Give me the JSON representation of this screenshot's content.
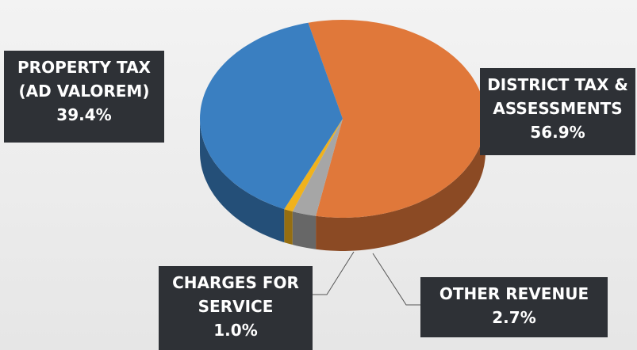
{
  "chart_data": {
    "type": "pie",
    "categories": [
      "DISTRICT TAX & ASSESSMENTS",
      "OTHER REVENUE",
      "CHARGES FOR SERVICE",
      "PROPERTY TAX (AD VALOREM)"
    ],
    "values": [
      56.9,
      2.7,
      1.0,
      39.4
    ],
    "value_labels": [
      "56.9%",
      "2.7%",
      "1.0%",
      "39.4%"
    ],
    "colors": [
      "#e0783a",
      "#a6a6a6",
      "#f0b21c",
      "#3a7fc1"
    ]
  }
}
